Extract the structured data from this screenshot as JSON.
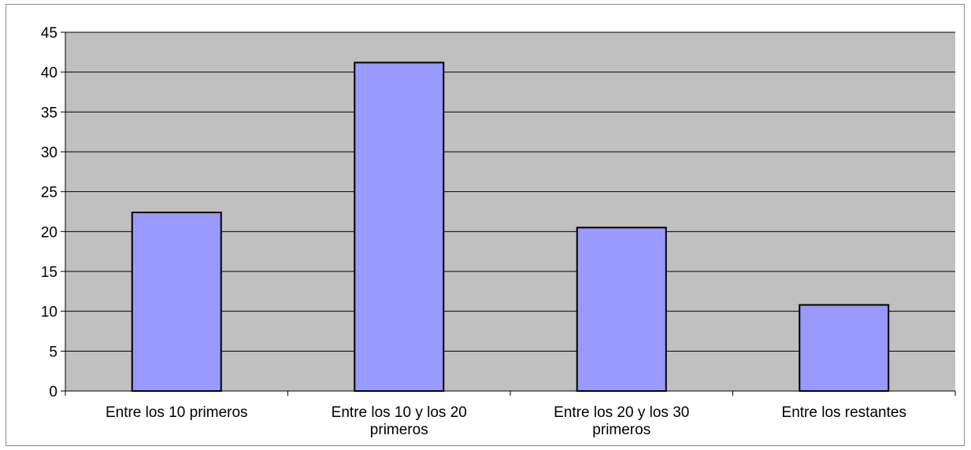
{
  "chart_data": {
    "type": "bar",
    "categories": [
      [
        "Entre los 10 primeros"
      ],
      [
        "Entre los 10 y los 20",
        "primeros"
      ],
      [
        "Entre los 20 y los 30",
        "primeros"
      ],
      [
        "Entre los restantes"
      ]
    ],
    "values": [
      22.4,
      41.2,
      20.5,
      10.8
    ],
    "title": "",
    "xlabel": "",
    "ylabel": "",
    "ylim": [
      0,
      45
    ],
    "yticks": [
      "0",
      "5",
      "10",
      "15",
      "20",
      "25",
      "30",
      "35",
      "40",
      "45"
    ],
    "grid": true,
    "legend": "none",
    "colors": {
      "plot_background": "#c0c0c0",
      "bar_fill": "#9999ff",
      "bar_stroke": "#000000",
      "gridline": "#000000"
    }
  }
}
